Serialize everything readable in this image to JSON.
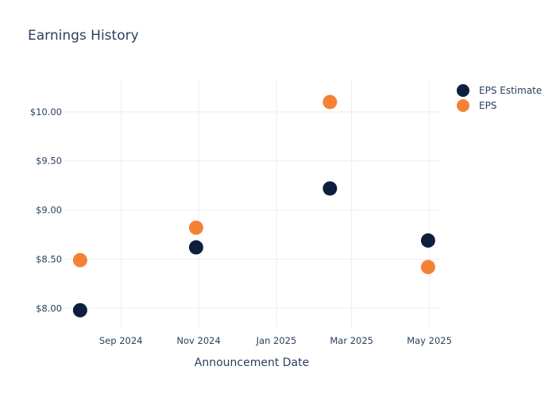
{
  "chart_data": {
    "type": "scatter",
    "title": "Earnings History",
    "xlabel": "Announcement Date",
    "ylabel": "",
    "x_ticks": [
      {
        "date": "2024-09-01",
        "label": "Sep 2024"
      },
      {
        "date": "2024-11-01",
        "label": "Nov 2024"
      },
      {
        "date": "2025-01-01",
        "label": "Jan 2025"
      },
      {
        "date": "2025-03-01",
        "label": "Mar 2025"
      },
      {
        "date": "2025-05-01",
        "label": "May 2025"
      }
    ],
    "xlim": [
      "2024-07-18",
      "2025-05-10"
    ],
    "y_ticks": [
      {
        "value": 8.0,
        "label": "$8.00"
      },
      {
        "value": 8.5,
        "label": "$8.50"
      },
      {
        "value": 9.0,
        "label": "$9.00"
      },
      {
        "value": 9.5,
        "label": "$9.50"
      },
      {
        "value": 10.0,
        "label": "$10.00"
      }
    ],
    "ylim": [
      7.8,
      10.33
    ],
    "grid": true,
    "legend_position": "top-right",
    "series": [
      {
        "name": "EPS Estimate",
        "color": "#0d1f3d",
        "points": [
          {
            "x": "2024-07-31",
            "y": 7.98
          },
          {
            "x": "2024-10-30",
            "y": 8.62
          },
          {
            "x": "2025-02-12",
            "y": 9.22
          },
          {
            "x": "2025-04-30",
            "y": 8.69
          }
        ]
      },
      {
        "name": "EPS",
        "color": "#f58233",
        "points": [
          {
            "x": "2024-07-31",
            "y": 8.49
          },
          {
            "x": "2024-10-30",
            "y": 8.82
          },
          {
            "x": "2025-02-12",
            "y": 10.1
          },
          {
            "x": "2025-04-30",
            "y": 8.42
          }
        ]
      }
    ]
  }
}
